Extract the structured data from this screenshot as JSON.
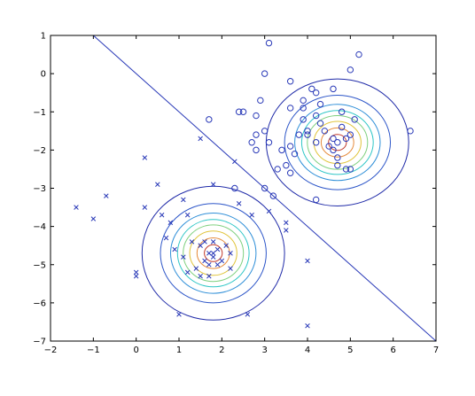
{
  "chart_data": {
    "type": "scatter",
    "title": "",
    "xlabel": "",
    "ylabel": "",
    "xlim": [
      -2,
      7
    ],
    "ylim": [
      -7,
      1
    ],
    "grid": false,
    "x_ticks": [
      "−2",
      "−1",
      "0",
      "1",
      "2",
      "3",
      "4",
      "5",
      "6",
      "7"
    ],
    "y_ticks": [
      "1",
      "0",
      "−1",
      "−2",
      "−3",
      "−4",
      "−5",
      "−6",
      "−7"
    ],
    "colors": {
      "markers": "#2a3ab8",
      "boundary": "#2a3ab8",
      "axes": "#000000",
      "contours": [
        "#1f2aa8",
        "#2c55c8",
        "#2f8fd8",
        "#2ec6c6",
        "#7fd07f",
        "#e0c43a",
        "#e58a3a",
        "#c0392b"
      ]
    },
    "series": [
      {
        "marker": "x",
        "points": [
          [
            1.7,
            -4.7
          ],
          [
            1.8,
            -4.8
          ],
          [
            1.6,
            -4.9
          ],
          [
            1.9,
            -4.6
          ],
          [
            1.5,
            -4.5
          ],
          [
            2.1,
            -4.5
          ],
          [
            1.3,
            -4.4
          ],
          [
            1.4,
            -5.1
          ],
          [
            1.7,
            -5.0
          ],
          [
            2.0,
            -4.9
          ],
          [
            2.2,
            -4.7
          ],
          [
            1.8,
            -4.4
          ],
          [
            1.9,
            -5.0
          ],
          [
            1.6,
            -4.4
          ],
          [
            1.8,
            -4.7
          ],
          [
            1.7,
            -5.3
          ],
          [
            1.5,
            -5.3
          ],
          [
            2.2,
            -5.1
          ],
          [
            1.2,
            -5.2
          ],
          [
            1.1,
            -4.8
          ],
          [
            0.9,
            -4.6
          ],
          [
            0.7,
            -4.3
          ],
          [
            0.8,
            -3.9
          ],
          [
            1.1,
            -3.3
          ],
          [
            1.2,
            -3.7
          ],
          [
            1.8,
            -2.9
          ],
          [
            2.4,
            -3.4
          ],
          [
            2.7,
            -3.7
          ],
          [
            3.1,
            -3.6
          ],
          [
            3.5,
            -3.9
          ],
          [
            3.5,
            -4.1
          ],
          [
            2.3,
            -2.3
          ],
          [
            1.5,
            -1.7
          ],
          [
            0.2,
            -2.2
          ],
          [
            0.5,
            -2.9
          ],
          [
            0.6,
            -3.7
          ],
          [
            0.2,
            -3.5
          ],
          [
            -0.7,
            -3.2
          ],
          [
            -1.0,
            -3.8
          ],
          [
            -1.4,
            -3.5
          ],
          [
            0.0,
            -5.2
          ],
          [
            0.0,
            -5.3
          ],
          [
            1.0,
            -6.3
          ],
          [
            2.6,
            -6.3
          ],
          [
            4.0,
            -4.9
          ],
          [
            4.0,
            -6.6
          ]
        ]
      },
      {
        "marker": "o",
        "points": [
          [
            4.6,
            -1.7
          ],
          [
            4.7,
            -1.8
          ],
          [
            4.5,
            -1.9
          ],
          [
            4.4,
            -1.5
          ],
          [
            4.8,
            -1.4
          ],
          [
            4.9,
            -1.7
          ],
          [
            4.2,
            -1.8
          ],
          [
            4.3,
            -1.3
          ],
          [
            4.0,
            -1.5
          ],
          [
            4.0,
            -1.6
          ],
          [
            3.9,
            -1.2
          ],
          [
            3.8,
            -1.6
          ],
          [
            3.6,
            -1.9
          ],
          [
            3.7,
            -2.1
          ],
          [
            3.5,
            -2.4
          ],
          [
            3.4,
            -2.0
          ],
          [
            4.7,
            -2.2
          ],
          [
            4.6,
            -2.0
          ],
          [
            4.7,
            -2.4
          ],
          [
            4.9,
            -2.5
          ],
          [
            5.0,
            -2.5
          ],
          [
            5.0,
            -1.6
          ],
          [
            5.1,
            -1.2
          ],
          [
            4.8,
            -1.0
          ],
          [
            4.6,
            -0.4
          ],
          [
            4.1,
            -0.4
          ],
          [
            4.2,
            -0.5
          ],
          [
            4.3,
            -0.8
          ],
          [
            3.9,
            -0.9
          ],
          [
            4.2,
            -1.1
          ],
          [
            3.6,
            -0.9
          ],
          [
            3.6,
            -0.2
          ],
          [
            3.9,
            -0.7
          ],
          [
            5.0,
            0.1
          ],
          [
            5.2,
            0.5
          ],
          [
            3.1,
            0.8
          ],
          [
            3.0,
            0.0
          ],
          [
            2.9,
            -0.7
          ],
          [
            2.8,
            -1.1
          ],
          [
            2.8,
            -1.6
          ],
          [
            2.5,
            -1.0
          ],
          [
            2.4,
            -1.0
          ],
          [
            3.0,
            -1.5
          ],
          [
            3.1,
            -1.8
          ],
          [
            2.7,
            -1.8
          ],
          [
            2.8,
            -2.0
          ],
          [
            3.3,
            -2.5
          ],
          [
            3.2,
            -3.2
          ],
          [
            3.0,
            -3.0
          ],
          [
            3.6,
            -2.6
          ],
          [
            4.2,
            -3.3
          ],
          [
            2.3,
            -3.0
          ],
          [
            1.7,
            -1.2
          ],
          [
            6.4,
            -1.5
          ]
        ]
      }
    ],
    "decision_boundary": [
      [
        -1.0,
        1.0
      ],
      [
        7.0,
        -7.0
      ]
    ],
    "gaussians": [
      {
        "center": [
          1.8,
          -4.7
        ],
        "sx": 0.95,
        "sy": 1.0,
        "levels": [
          0.22,
          0.4,
          0.58,
          0.74,
          0.88,
          1.05,
          1.3,
          1.75
        ]
      },
      {
        "center": [
          4.7,
          -1.8
        ],
        "sx": 0.95,
        "sy": 0.95,
        "levels": [
          0.22,
          0.4,
          0.58,
          0.74,
          0.88,
          1.05,
          1.3,
          1.75
        ]
      }
    ]
  }
}
